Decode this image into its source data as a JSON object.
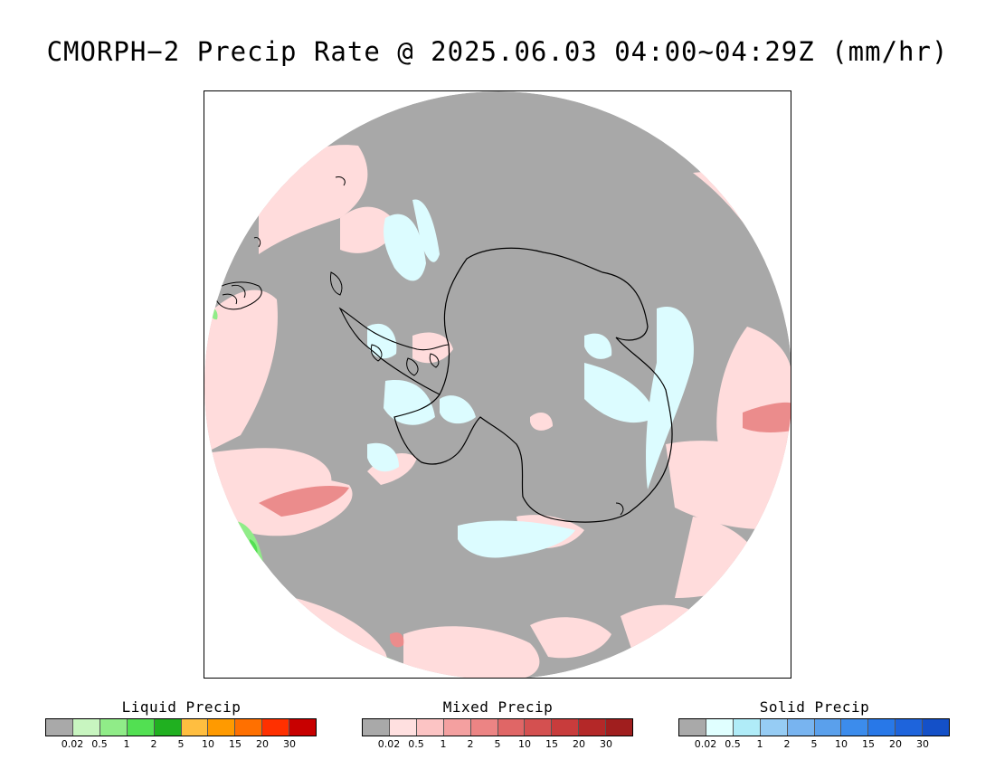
{
  "title": "CMORPH−2 Precip Rate @ 2025.06.03 04:00~04:29Z (mm/hr)",
  "map": {
    "projection": "south-polar-stereographic",
    "background_color": "#a8a8a8",
    "outline_color": "#000000"
  },
  "legends": [
    {
      "title": "Liquid Precip",
      "colors": [
        "#a9a9a9",
        "#c8f5c0",
        "#90ec88",
        "#52e052",
        "#20b020",
        "#ffbe40",
        "#ff9a00",
        "#ff7000",
        "#ff3000",
        "#c80000"
      ],
      "ticks": [
        "0.02",
        "0.5",
        "1",
        "2",
        "5",
        "10",
        "15",
        "20",
        "30"
      ]
    },
    {
      "title": "Mixed Precip",
      "colors": [
        "#a9a9a9",
        "#ffe0e0",
        "#fcc4c4",
        "#f4a0a0",
        "#ec8484",
        "#e06666",
        "#d45050",
        "#c83c3c",
        "#b42828",
        "#a01e1e"
      ],
      "ticks": [
        "0.02",
        "0.5",
        "1",
        "2",
        "5",
        "10",
        "15",
        "20",
        "30"
      ]
    },
    {
      "title": "Solid Precip",
      "colors": [
        "#a9a9a9",
        "#e0ffff",
        "#b0ecf8",
        "#96ccf4",
        "#78b4f0",
        "#5aa0ec",
        "#3c8cec",
        "#2878e8",
        "#1e64dc",
        "#1450c8"
      ],
      "ticks": [
        "0.02",
        "0.5",
        "1",
        "2",
        "5",
        "10",
        "15",
        "20",
        "30"
      ]
    }
  ]
}
